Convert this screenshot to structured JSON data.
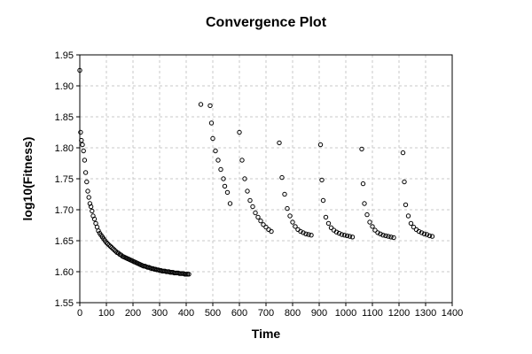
{
  "chart_data": {
    "type": "scatter",
    "title": "Convergence Plot",
    "xlabel": "Time",
    "ylabel": "log10(Fitness)",
    "xlim": [
      0,
      1400
    ],
    "ylim": [
      1.55,
      1.95
    ],
    "xticks": [
      0,
      100,
      200,
      300,
      400,
      500,
      600,
      700,
      800,
      900,
      1000,
      1100,
      1200,
      1300,
      1400
    ],
    "yticks": [
      1.55,
      1.6,
      1.65,
      1.7,
      1.75,
      1.8,
      1.85,
      1.9,
      1.95
    ],
    "ytick_labels": [
      "1.55",
      "1.60",
      "1.65",
      "1.70",
      "1.75",
      "1.80",
      "1.85",
      "1.90",
      "1.95"
    ],
    "grid": true,
    "marker": "open-circle",
    "series": [
      {
        "x": [
          0,
          3,
          6,
          10,
          14,
          18,
          22,
          26,
          30,
          34,
          38,
          42,
          46,
          50,
          55,
          60,
          65,
          70,
          75,
          80,
          85,
          90,
          95,
          100,
          105,
          110,
          115,
          120,
          125,
          130,
          135,
          140,
          145,
          150,
          155,
          160,
          165,
          170,
          175,
          180,
          185,
          190,
          195,
          200,
          205,
          210,
          215,
          220,
          225,
          230,
          235,
          240,
          245,
          250,
          255,
          260,
          265,
          270,
          275,
          280,
          285,
          290,
          295,
          300,
          305,
          310,
          315,
          320,
          325,
          330,
          335,
          340,
          345,
          350,
          355,
          360,
          365,
          370,
          375,
          380,
          385,
          390,
          395,
          400,
          405,
          410
        ],
        "y": [
          1.925,
          1.825,
          1.812,
          1.805,
          1.795,
          1.78,
          1.76,
          1.745,
          1.73,
          1.72,
          1.71,
          1.705,
          1.698,
          1.69,
          1.685,
          1.678,
          1.672,
          1.666,
          1.662,
          1.659,
          1.656,
          1.653,
          1.65,
          1.647,
          1.645,
          1.643,
          1.641,
          1.639,
          1.637,
          1.635,
          1.633,
          1.631,
          1.63,
          1.628,
          1.627,
          1.625,
          1.624,
          1.623,
          1.622,
          1.621,
          1.62,
          1.619,
          1.618,
          1.617,
          1.616,
          1.615,
          1.614,
          1.613,
          1.612,
          1.611,
          1.61,
          1.609,
          1.609,
          1.608,
          1.607,
          1.607,
          1.606,
          1.605,
          1.605,
          1.604,
          1.604,
          1.603,
          1.603,
          1.602,
          1.602,
          1.601,
          1.601,
          1.601,
          1.6,
          1.6,
          1.6,
          1.599,
          1.599,
          1.599,
          1.598,
          1.598,
          1.598,
          1.598,
          1.597,
          1.597,
          1.597,
          1.597,
          1.596,
          1.596,
          1.596,
          1.596
        ]
      },
      {
        "x": [
          455,
          490,
          495,
          500,
          510,
          520,
          530,
          540,
          545,
          555,
          565
        ],
        "y": [
          1.87,
          1.868,
          1.84,
          1.815,
          1.795,
          1.78,
          1.765,
          1.75,
          1.738,
          1.728,
          1.71
        ]
      },
      {
        "x": [
          600,
          610,
          620,
          630,
          640,
          650,
          660,
          670,
          680,
          690,
          700,
          710,
          720
        ],
        "y": [
          1.825,
          1.78,
          1.75,
          1.73,
          1.715,
          1.705,
          1.695,
          1.688,
          1.682,
          1.676,
          1.672,
          1.668,
          1.665
        ]
      },
      {
        "x": [
          750,
          760,
          770,
          780,
          790,
          800,
          810,
          820,
          830,
          840,
          850,
          860,
          870
        ],
        "y": [
          1.808,
          1.752,
          1.725,
          1.702,
          1.69,
          1.68,
          1.673,
          1.668,
          1.665,
          1.663,
          1.661,
          1.66,
          1.659
        ]
      },
      {
        "x": [
          905,
          910,
          915,
          925,
          935,
          945,
          955,
          965,
          975,
          985,
          995,
          1005,
          1015,
          1025
        ],
        "y": [
          1.805,
          1.748,
          1.715,
          1.688,
          1.678,
          1.671,
          1.667,
          1.664,
          1.662,
          1.66,
          1.659,
          1.658,
          1.657,
          1.656
        ]
      },
      {
        "x": [
          1060,
          1065,
          1070,
          1080,
          1090,
          1100,
          1110,
          1120,
          1130,
          1140,
          1150,
          1160,
          1170,
          1180
        ],
        "y": [
          1.798,
          1.742,
          1.71,
          1.692,
          1.68,
          1.673,
          1.667,
          1.663,
          1.661,
          1.659,
          1.658,
          1.657,
          1.656,
          1.655
        ]
      },
      {
        "x": [
          1215,
          1220,
          1225,
          1235,
          1245,
          1255,
          1265,
          1275,
          1285,
          1295,
          1305,
          1315,
          1325
        ],
        "y": [
          1.792,
          1.745,
          1.708,
          1.69,
          1.678,
          1.672,
          1.668,
          1.665,
          1.663,
          1.661,
          1.66,
          1.658,
          1.657
        ]
      }
    ]
  }
}
